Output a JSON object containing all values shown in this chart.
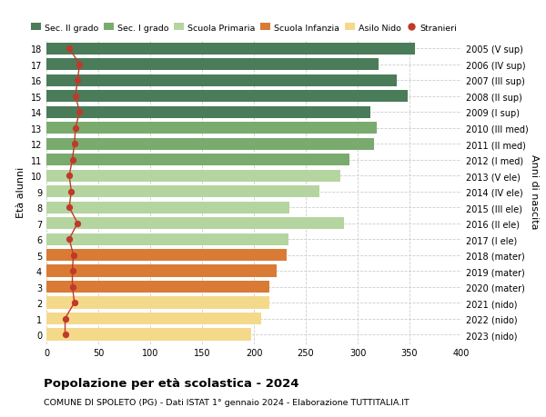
{
  "ages": [
    18,
    17,
    16,
    15,
    14,
    13,
    12,
    11,
    10,
    9,
    8,
    7,
    6,
    5,
    4,
    3,
    2,
    1,
    0
  ],
  "bar_values": [
    355,
    320,
    338,
    348,
    312,
    318,
    316,
    292,
    283,
    263,
    234,
    287,
    233,
    232,
    222,
    215,
    215,
    207,
    197
  ],
  "stranieri": [
    22,
    32,
    30,
    28,
    32,
    28,
    27,
    25,
    22,
    24,
    22,
    30,
    22,
    26,
    25,
    25,
    27,
    18,
    18
  ],
  "right_labels": [
    "2005 (V sup)",
    "2006 (IV sup)",
    "2007 (III sup)",
    "2008 (II sup)",
    "2009 (I sup)",
    "2010 (III med)",
    "2011 (II med)",
    "2012 (I med)",
    "2013 (V ele)",
    "2014 (IV ele)",
    "2015 (III ele)",
    "2016 (II ele)",
    "2017 (I ele)",
    "2018 (mater)",
    "2019 (mater)",
    "2020 (mater)",
    "2021 (nido)",
    "2022 (nido)",
    "2023 (nido)"
  ],
  "bar_colors": [
    "#4a7c59",
    "#4a7c59",
    "#4a7c59",
    "#4a7c59",
    "#4a7c59",
    "#7aab6e",
    "#7aab6e",
    "#7aab6e",
    "#b5d5a0",
    "#b5d5a0",
    "#b5d5a0",
    "#b5d5a0",
    "#b5d5a0",
    "#d97b35",
    "#d97b35",
    "#d97b35",
    "#f5d98b",
    "#f5d98b",
    "#f5d98b"
  ],
  "legend_labels": [
    "Sec. II grado",
    "Sec. I grado",
    "Scuola Primaria",
    "Scuola Infanzia",
    "Asilo Nido",
    "Stranieri"
  ],
  "legend_colors": [
    "#4a7c59",
    "#7aab6e",
    "#b5d5a0",
    "#d97b35",
    "#f5d98b",
    "#c0392b"
  ],
  "title": "Popolazione per età scolastica - 2024",
  "subtitle": "COMUNE DI SPOLETO (PG) - Dati ISTAT 1° gennaio 2024 - Elaborazione TUTTITALIA.IT",
  "ylabel": "Età alunni",
  "right_ylabel": "Anni di nascita",
  "xlim": [
    0,
    400
  ],
  "xticks": [
    0,
    50,
    100,
    150,
    200,
    250,
    300,
    350,
    400
  ],
  "background_color": "#ffffff",
  "grid_color": "#cccccc",
  "stranieri_color": "#c0392b",
  "bar_height": 0.75
}
